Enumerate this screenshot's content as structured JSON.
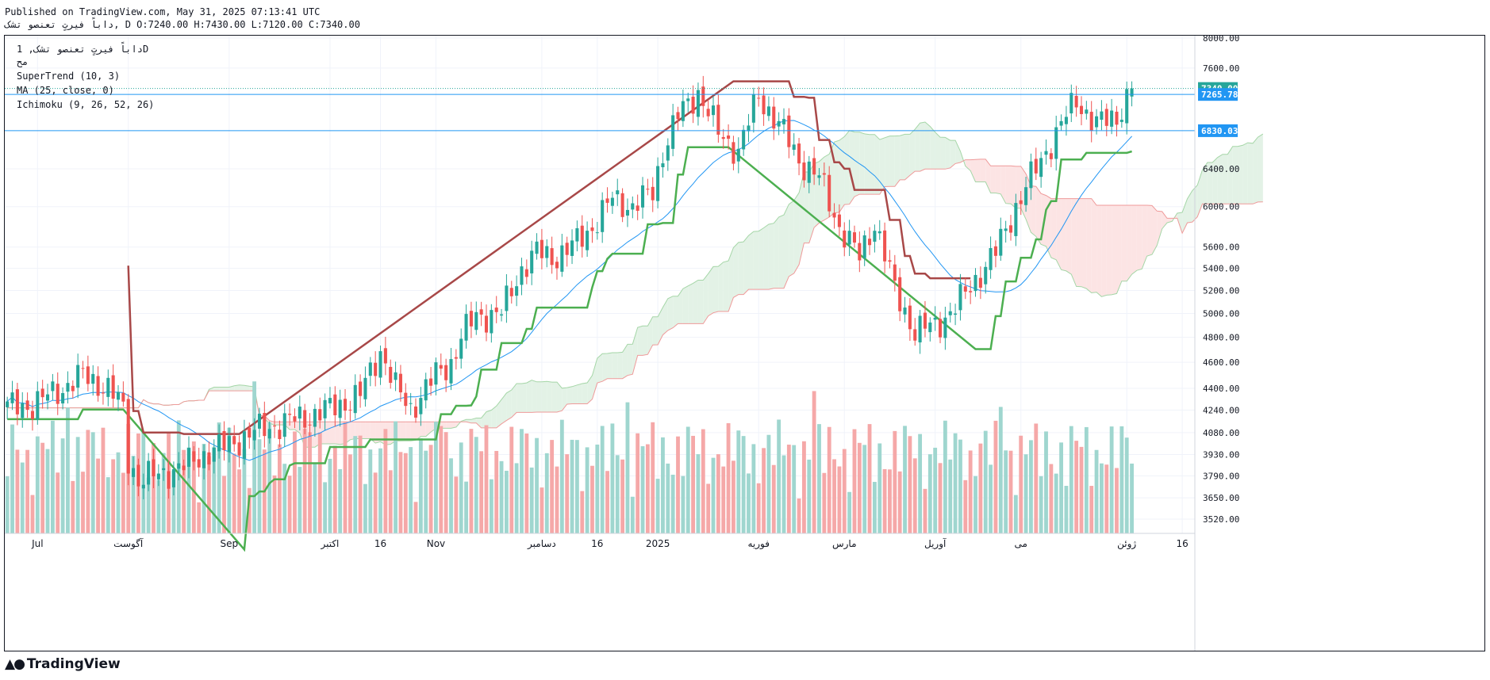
{
  "header": {
    "published": "Published on TradingView.com, May 31, 2025 07:13:41 UTC",
    "ohlc": "داباً فیرتٍ تعنصو تشک, D O:7240.00 H:7430.00 L:7120.00 C:7340.00"
  },
  "legend": {
    "symbol": "داباً فیرتٍ تعنصو تشک, 1D",
    "currency": "مح",
    "indicators": [
      "SuperTrend (10, 3)",
      "MA (25, close, 0)",
      "Ichimoku (9, 26, 52, 26)"
    ]
  },
  "brand": {
    "name": "TradingView",
    "icon": "tradingview-logo-icon"
  },
  "colors": {
    "up": "#26a69a",
    "down": "#ef5350",
    "up_volume": "#9fd6cf",
    "down_volume": "#f5a8a8",
    "supertrend_up": "#4caf50",
    "supertrend_down": "#a84848",
    "ma": "#2196f3",
    "cloud_green": "#e3f2e6",
    "cloud_red": "#fce4e4",
    "level_line": "#2196f3"
  },
  "chart_data": {
    "type": "candlestick",
    "scale": "log",
    "y_ticks": [
      3520,
      3650,
      3790,
      3930,
      4080,
      4240,
      4400,
      4600,
      4800,
      5000,
      5200,
      5400,
      5600,
      6000,
      6400,
      7600,
      8000
    ],
    "y_tick_labels": [
      "3520.00",
      "3650.00",
      "3790.00",
      "3930.00",
      "4080.00",
      "4240.00",
      "4400.00",
      "4600.00",
      "4800.00",
      "5000.00",
      "5200.00",
      "5400.00",
      "5600.00",
      "6000.00",
      "6400.00",
      "7600.00",
      "8000.00"
    ],
    "x_ticks": [
      {
        "label": "Jul",
        "index": 6
      },
      {
        "label": "آگوست",
        "index": 24
      },
      {
        "label": "Sep",
        "index": 44
      },
      {
        "label": "اکتبر",
        "index": 64
      },
      {
        "label": "16",
        "index": 74
      },
      {
        "label": "Nov",
        "index": 85
      },
      {
        "label": "دسامبر",
        "index": 106
      },
      {
        "label": "16",
        "index": 117
      },
      {
        "label": "2025",
        "index": 129
      },
      {
        "label": "فوریه",
        "index": 149
      },
      {
        "label": "مارس",
        "index": 166
      },
      {
        "label": "آوریل",
        "index": 184
      },
      {
        "label": "می",
        "index": 201
      },
      {
        "label": "ژوئن",
        "index": 222
      },
      {
        "label": "16",
        "index": 233
      }
    ],
    "price_badges": [
      {
        "value": 7340,
        "label": "7340.00",
        "color": "#26a69a"
      },
      {
        "value": 7265.78,
        "label": "7265.78",
        "color": "#2196f3"
      },
      {
        "value": 6830.03,
        "label": "6830.03",
        "color": "#2196f3"
      }
    ],
    "horizontal_levels": [
      7265.78,
      6830.03
    ],
    "last_close": 7340,
    "ohlc_last": {
      "open": 7240,
      "high": 7430,
      "low": 7120,
      "close": 7340
    },
    "waypoints": [
      [
        0,
        4260
      ],
      [
        5,
        4280
      ],
      [
        10,
        4380
      ],
      [
        15,
        4500
      ],
      [
        20,
        4400
      ],
      [
        23,
        4250
      ],
      [
        24,
        3900
      ],
      [
        26,
        3760
      ],
      [
        30,
        3800
      ],
      [
        35,
        3850
      ],
      [
        40,
        3950
      ],
      [
        44,
        4000
      ],
      [
        50,
        4100
      ],
      [
        55,
        4150
      ],
      [
        60,
        4200
      ],
      [
        64,
        4250
      ],
      [
        70,
        4350
      ],
      [
        74,
        4700
      ],
      [
        77,
        4400
      ],
      [
        80,
        4250
      ],
      [
        85,
        4500
      ],
      [
        88,
        4600
      ],
      [
        90,
        4800
      ],
      [
        93,
        4980
      ],
      [
        98,
        5000
      ],
      [
        102,
        5400
      ],
      [
        105,
        5550
      ],
      [
        108,
        5500
      ],
      [
        112,
        5600
      ],
      [
        116,
        5800
      ],
      [
        120,
        6080
      ],
      [
        124,
        6000
      ],
      [
        128,
        6150
      ],
      [
        130,
        6600
      ],
      [
        133,
        7000
      ],
      [
        137,
        7300
      ],
      [
        141,
        6800
      ],
      [
        145,
        6600
      ],
      [
        149,
        7250
      ],
      [
        153,
        6900
      ],
      [
        157,
        6500
      ],
      [
        161,
        6300
      ],
      [
        165,
        5800
      ],
      [
        169,
        5500
      ],
      [
        172,
        5850
      ],
      [
        176,
        5200
      ],
      [
        180,
        4850
      ],
      [
        184,
        4900
      ],
      [
        188,
        5050
      ],
      [
        192,
        5300
      ],
      [
        196,
        5550
      ],
      [
        200,
        6000
      ],
      [
        204,
        6400
      ],
      [
        208,
        6800
      ],
      [
        212,
        7200
      ],
      [
        216,
        6900
      ],
      [
        220,
        7000
      ],
      [
        223,
        7340
      ]
    ],
    "volume_range": [
      0,
      25
    ]
  }
}
